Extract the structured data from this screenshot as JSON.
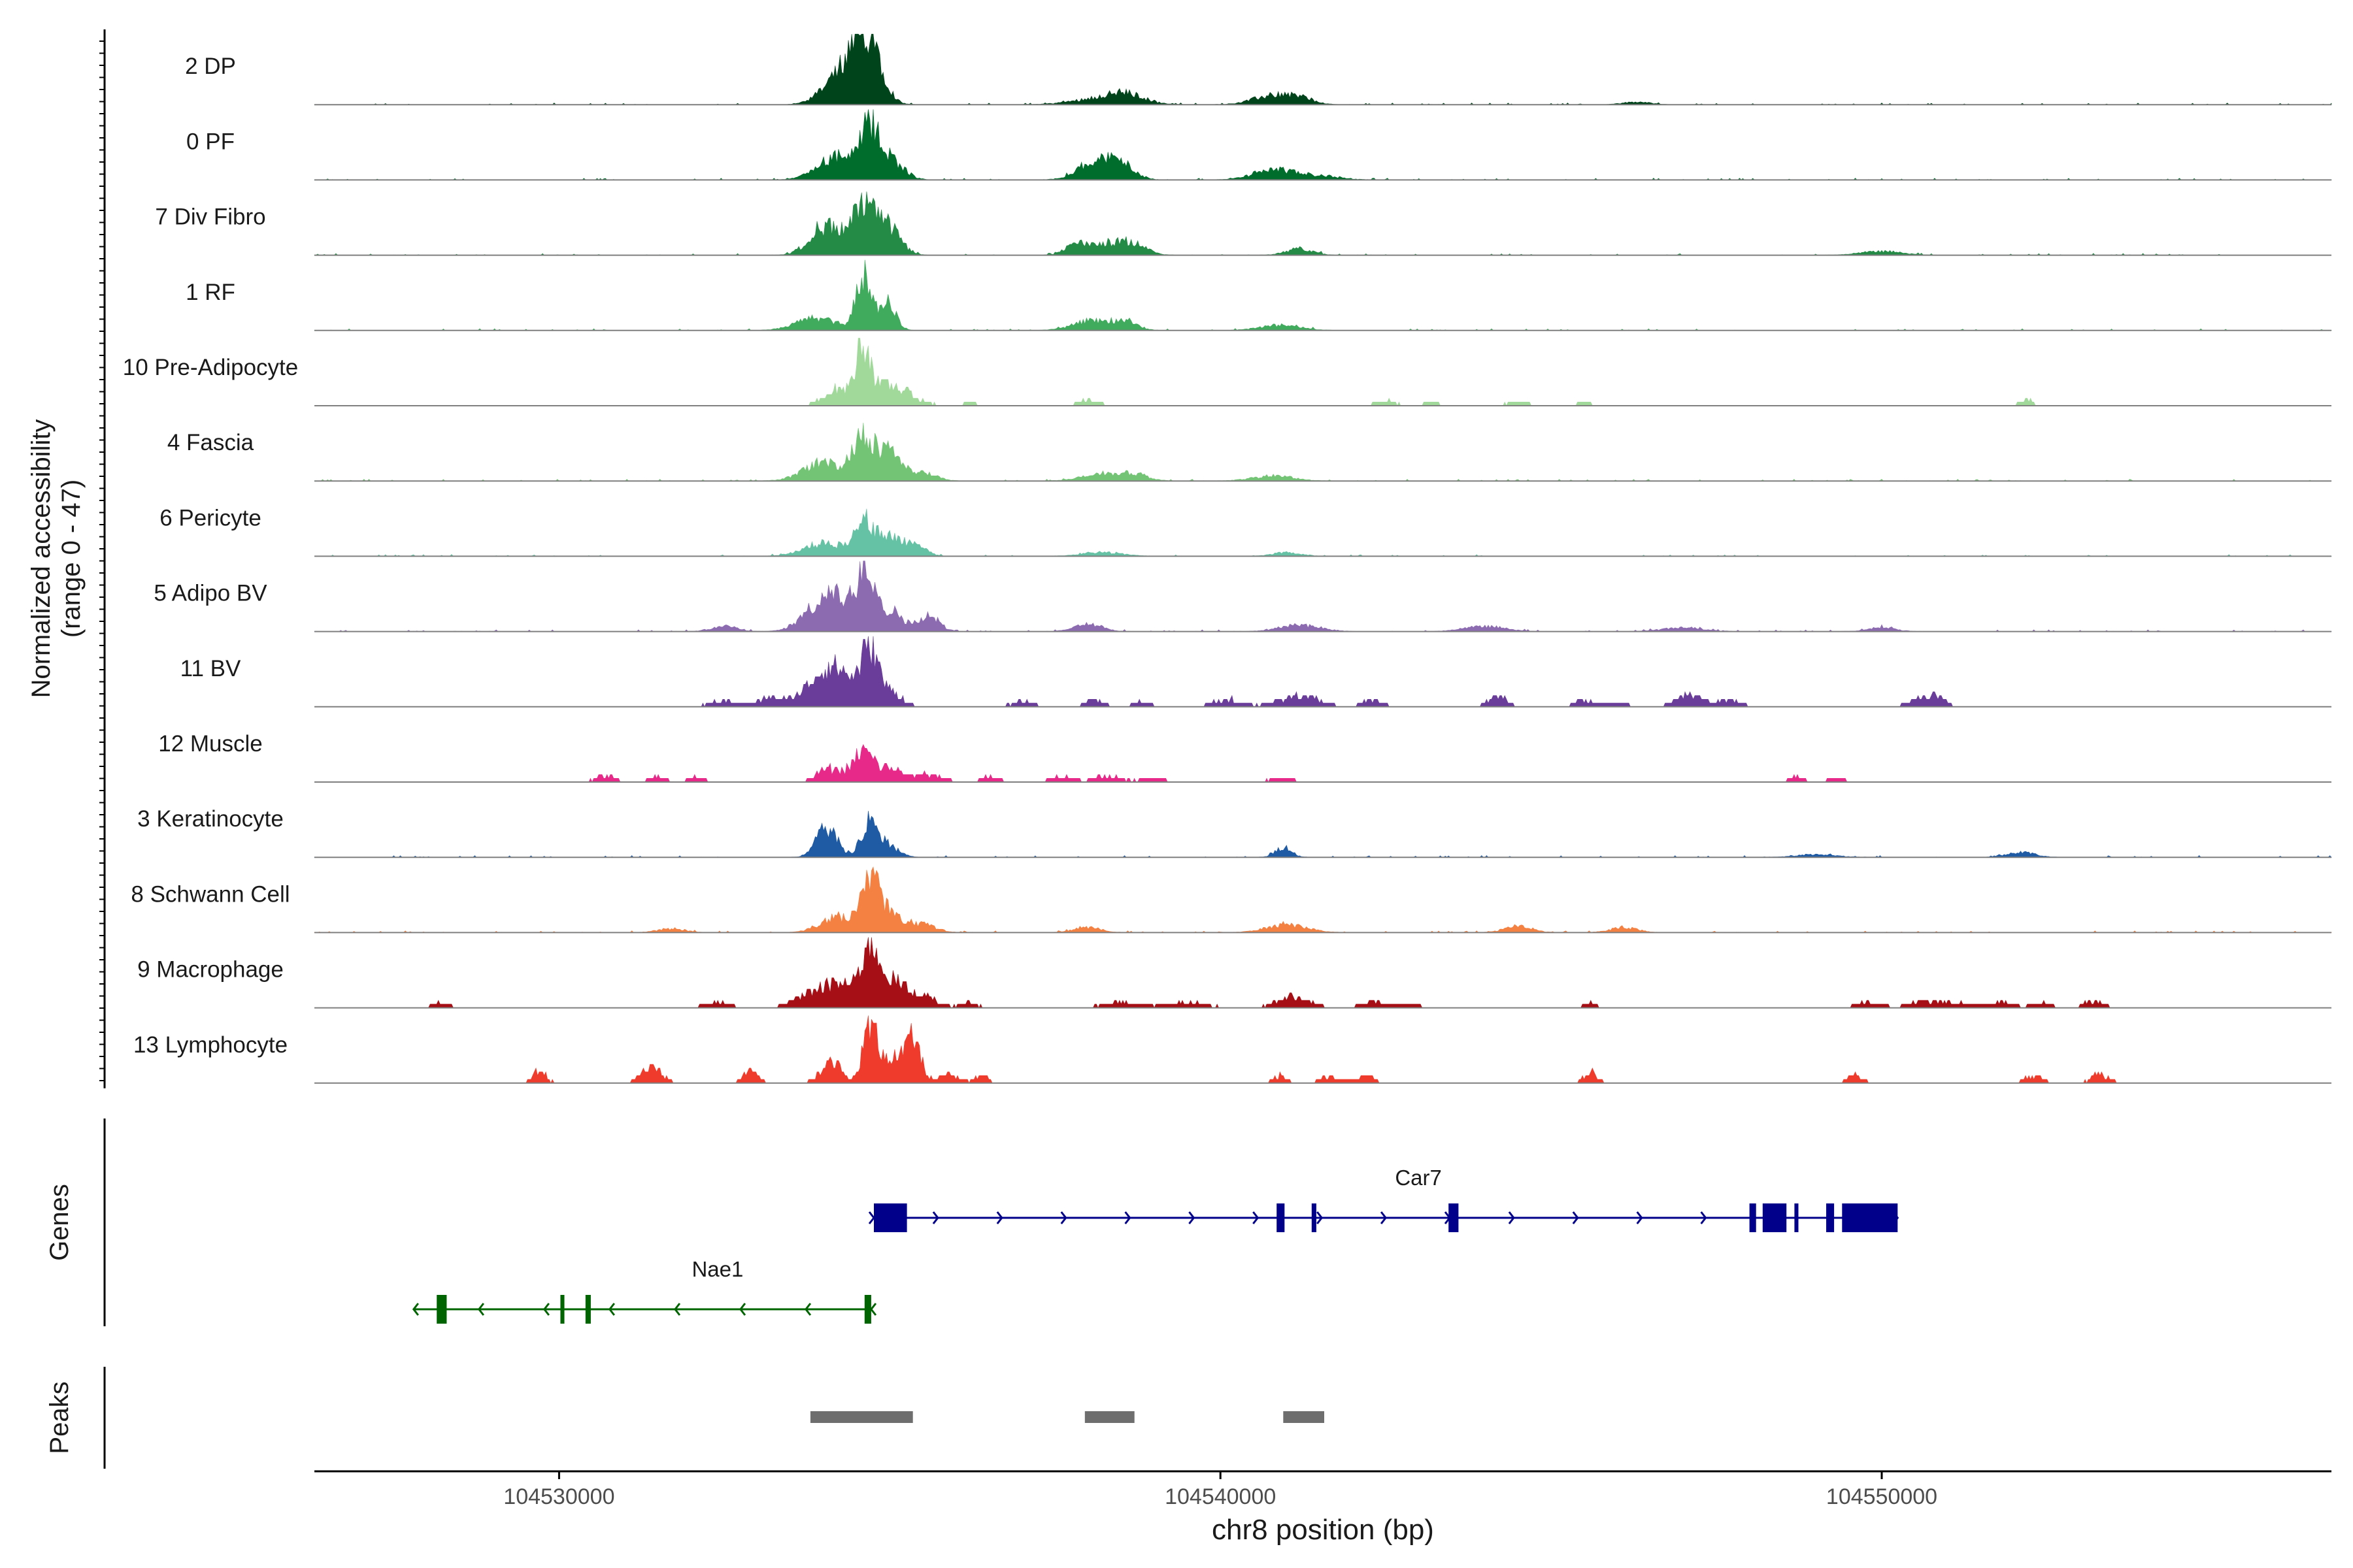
{
  "chart_data": {
    "type": "area",
    "xlabel": "chr8 position (bp)",
    "ylabel_line1": "Normalized accessibility",
    "ylabel_line2": "(range 0 - 47)",
    "xlim": [
      104526300,
      104556800
    ],
    "ylim": [
      0,
      47
    ],
    "x_ticks": [
      {
        "value": 104530000,
        "label": "104530000"
      },
      {
        "value": 104540000,
        "label": "104540000"
      },
      {
        "value": 104550000,
        "label": "104550000"
      }
    ],
    "tracks": [
      {
        "name": "2 DP",
        "color": "#00441b",
        "mode": "dense",
        "peaks": [
          [
            104534500,
            22,
            260
          ],
          [
            104534700,
            40,
            180
          ],
          [
            104534200,
            14,
            250
          ],
          [
            104538200,
            5,
            400
          ],
          [
            104538600,
            6,
            260
          ],
          [
            104540800,
            7,
            300
          ],
          [
            104541200,
            4,
            200
          ],
          [
            104546300,
            2,
            200
          ]
        ]
      },
      {
        "name": "0 PF",
        "color": "#006d2c",
        "mode": "dense",
        "peaks": [
          [
            104534200,
            18,
            280
          ],
          [
            104534700,
            36,
            140
          ],
          [
            104535000,
            16,
            200
          ],
          [
            104538100,
            14,
            260
          ],
          [
            104538500,
            11,
            200
          ],
          [
            104540800,
            8,
            300
          ],
          [
            104541500,
            3,
            300
          ]
        ]
      },
      {
        "name": "7 Div Fibro",
        "color": "#238b45",
        "mode": "dense",
        "peaks": [
          [
            104534000,
            22,
            220
          ],
          [
            104534600,
            36,
            200
          ],
          [
            104535000,
            18,
            180
          ],
          [
            104537800,
            7,
            150
          ],
          [
            104538300,
            9,
            300
          ],
          [
            104538700,
            6,
            200
          ],
          [
            104541200,
            5,
            200
          ],
          [
            104550000,
            3,
            300
          ]
        ]
      },
      {
        "name": "1 RF",
        "color": "#41ab5d",
        "mode": "dense",
        "peaks": [
          [
            104533900,
            10,
            300
          ],
          [
            104534600,
            42,
            110
          ],
          [
            104534950,
            22,
            130
          ],
          [
            104538100,
            8,
            300
          ],
          [
            104538600,
            6,
            160
          ],
          [
            104540900,
            4,
            300
          ]
        ]
      },
      {
        "name": "10 Pre-Adipocyte",
        "color": "#a1d99b",
        "mode": "sparse",
        "peaks": [
          [
            104534200,
            12,
            200
          ],
          [
            104534600,
            42,
            110
          ],
          [
            104535000,
            16,
            300
          ],
          [
            104536200,
            3,
            100
          ],
          [
            104538000,
            4,
            150
          ],
          [
            104542500,
            4,
            150
          ],
          [
            104543200,
            3,
            100
          ],
          [
            104544500,
            3,
            150
          ],
          [
            104545500,
            3,
            100
          ],
          [
            104552200,
            4,
            100
          ]
        ]
      },
      {
        "name": "4 Fascia",
        "color": "#74c476",
        "mode": "dense",
        "peaks": [
          [
            104534000,
            14,
            300
          ],
          [
            104534600,
            36,
            150
          ],
          [
            104535000,
            26,
            160
          ],
          [
            104535500,
            6,
            200
          ],
          [
            104538200,
            5,
            300
          ],
          [
            104538700,
            5,
            200
          ],
          [
            104540800,
            4,
            300
          ]
        ]
      },
      {
        "name": "6 Pericyte",
        "color": "#66c2a4",
        "mode": "dense",
        "peaks": [
          [
            104534000,
            10,
            300
          ],
          [
            104534600,
            26,
            150
          ],
          [
            104535000,
            14,
            200
          ],
          [
            104535400,
            8,
            150
          ],
          [
            104538200,
            3,
            300
          ],
          [
            104541000,
            3,
            200
          ]
        ]
      },
      {
        "name": "5 Adipo BV",
        "color": "#8c6bb1",
        "mode": "dense",
        "peaks": [
          [
            104532500,
            4,
            200
          ],
          [
            104533900,
            16,
            250
          ],
          [
            104534300,
            22,
            250
          ],
          [
            104534650,
            46,
            120
          ],
          [
            104535000,
            16,
            200
          ],
          [
            104535600,
            12,
            150
          ],
          [
            104538000,
            6,
            200
          ],
          [
            104541200,
            5,
            300
          ],
          [
            104544000,
            4,
            300
          ],
          [
            104547000,
            3,
            300
          ],
          [
            104550000,
            3,
            200
          ]
        ]
      },
      {
        "name": "11 BV",
        "color": "#6a3d9a",
        "mode": "sparse",
        "peaks": [
          [
            104532500,
            5,
            200
          ],
          [
            104533200,
            7,
            180
          ],
          [
            104533900,
            16,
            250
          ],
          [
            104534250,
            24,
            250
          ],
          [
            104534700,
            42,
            120
          ],
          [
            104535000,
            12,
            180
          ],
          [
            104537000,
            4,
            150
          ],
          [
            104538100,
            6,
            150
          ],
          [
            104538800,
            4,
            120
          ],
          [
            104540100,
            6,
            200
          ],
          [
            104541200,
            8,
            300
          ],
          [
            104542300,
            5,
            150
          ],
          [
            104544200,
            8,
            150
          ],
          [
            104545500,
            5,
            150
          ],
          [
            104546000,
            4,
            150
          ],
          [
            104547100,
            10,
            200
          ],
          [
            104547700,
            5,
            150
          ],
          [
            104550500,
            5,
            150
          ],
          [
            104550800,
            8,
            150
          ]
        ]
      },
      {
        "name": "12 Muscle",
        "color": "#e7298a",
        "mode": "sparse",
        "peaks": [
          [
            104530700,
            5,
            150
          ],
          [
            104531500,
            4,
            150
          ],
          [
            104532100,
            4,
            120
          ],
          [
            104534100,
            10,
            200
          ],
          [
            104534600,
            22,
            150
          ],
          [
            104535000,
            10,
            200
          ],
          [
            104535600,
            6,
            200
          ],
          [
            104536500,
            4,
            150
          ],
          [
            104537600,
            5,
            150
          ],
          [
            104538300,
            5,
            200
          ],
          [
            104539000,
            4,
            150
          ],
          [
            104540900,
            4,
            150
          ],
          [
            104548700,
            4,
            100
          ],
          [
            104549300,
            4,
            100
          ]
        ]
      },
      {
        "name": "3 Keratinocyte",
        "color": "#1f5aa5",
        "mode": "dense",
        "peaks": [
          [
            104534050,
            22,
            160
          ],
          [
            104534700,
            28,
            130
          ],
          [
            104535000,
            8,
            150
          ],
          [
            104540950,
            8,
            120
          ],
          [
            104549000,
            2,
            300
          ],
          [
            104552100,
            4,
            200
          ]
        ]
      },
      {
        "name": "8 Schwann Cell",
        "color": "#f48042",
        "mode": "dense",
        "peaks": [
          [
            104531700,
            3,
            200
          ],
          [
            104534200,
            12,
            250
          ],
          [
            104534700,
            34,
            150
          ],
          [
            104535000,
            14,
            200
          ],
          [
            104535500,
            6,
            200
          ],
          [
            104538000,
            4,
            200
          ],
          [
            104541000,
            6,
            300
          ],
          [
            104544500,
            5,
            200
          ],
          [
            104546100,
            4,
            200
          ]
        ]
      },
      {
        "name": "9 Macrophage",
        "color": "#a50f15",
        "mode": "sparse",
        "peaks": [
          [
            104528200,
            4,
            120
          ],
          [
            104532400,
            4,
            200
          ],
          [
            104533800,
            10,
            250
          ],
          [
            104534300,
            18,
            250
          ],
          [
            104534700,
            42,
            120
          ],
          [
            104535000,
            22,
            200
          ],
          [
            104535500,
            10,
            200
          ],
          [
            104536200,
            4,
            120
          ],
          [
            104538500,
            4,
            300
          ],
          [
            104539500,
            4,
            300
          ],
          [
            104541100,
            8,
            250
          ],
          [
            104542300,
            5,
            150
          ],
          [
            104542800,
            4,
            150
          ],
          [
            104545600,
            4,
            100
          ],
          [
            104549800,
            4,
            200
          ],
          [
            104550600,
            4,
            200
          ],
          [
            104551100,
            4,
            300
          ],
          [
            104551800,
            5,
            150
          ],
          [
            104552400,
            4,
            150
          ],
          [
            104553200,
            5,
            150
          ]
        ]
      },
      {
        "name": "13 Lymphocyte",
        "color": "#ef3b2c",
        "mode": "sparse",
        "peaks": [
          [
            104529700,
            10,
            100
          ],
          [
            104531400,
            12,
            150
          ],
          [
            104532900,
            10,
            100
          ],
          [
            104534100,
            18,
            150
          ],
          [
            104534700,
            42,
            110
          ],
          [
            104535000,
            20,
            150
          ],
          [
            104535350,
            34,
            120
          ],
          [
            104535900,
            6,
            150
          ],
          [
            104536400,
            6,
            100
          ],
          [
            104540900,
            6,
            100
          ],
          [
            104541700,
            6,
            150
          ],
          [
            104542200,
            6,
            120
          ],
          [
            104545600,
            8,
            100
          ],
          [
            104549600,
            6,
            120
          ],
          [
            104552300,
            6,
            120
          ],
          [
            104553300,
            8,
            120
          ]
        ]
      }
    ],
    "genes": [
      {
        "name": "Car7",
        "color": "#00008b",
        "strand": "+",
        "start": 104534760,
        "end": 104550240,
        "exons": [
          [
            104534760,
            104535260
          ],
          [
            104540850,
            104540970
          ],
          [
            104541380,
            104541450
          ],
          [
            104543450,
            104543600
          ],
          [
            104548000,
            104548100
          ],
          [
            104548200,
            104548560
          ],
          [
            104548680,
            104548740
          ],
          [
            104549160,
            104549280
          ],
          [
            104549400,
            104550240
          ]
        ]
      },
      {
        "name": "Nae1",
        "color": "#006400",
        "strand": "-",
        "start": 104527800,
        "end": 104534720,
        "exons": [
          [
            104528150,
            104528300
          ],
          [
            104530020,
            104530080
          ],
          [
            104530400,
            104530480
          ],
          [
            104534620,
            104534720
          ]
        ]
      }
    ],
    "peaks_track": [
      [
        104533800,
        104535350
      ],
      [
        104537950,
        104538700
      ],
      [
        104540950,
        104541570
      ]
    ],
    "track_labels": {
      "genes": "Genes",
      "peaks": "Peaks"
    }
  }
}
